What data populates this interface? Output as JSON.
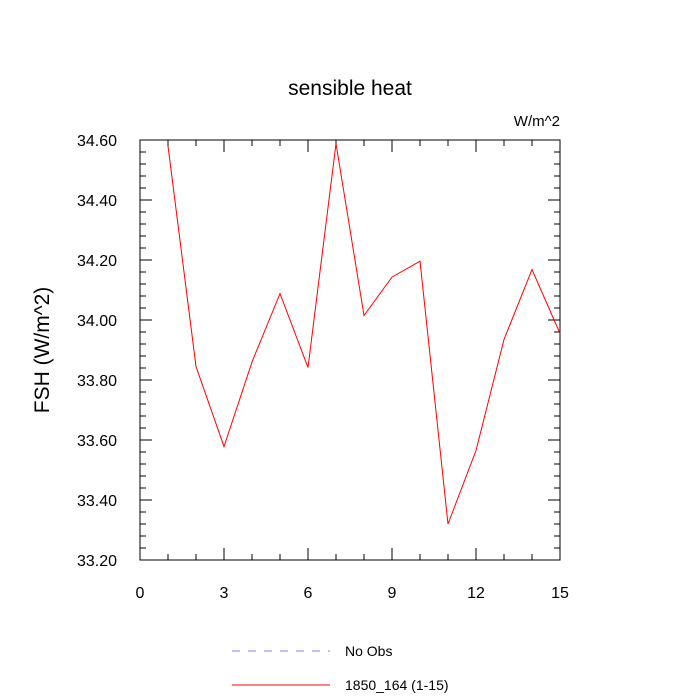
{
  "chart_data": {
    "type": "line",
    "title": "sensible heat",
    "units_label": "W/m^2",
    "ylabel": "FSH  (W/m^2)",
    "xlabel": "",
    "xlim": [
      0,
      15
    ],
    "ylim": [
      33.2,
      34.6
    ],
    "x_ticks": [
      0,
      3,
      6,
      9,
      12,
      15
    ],
    "x_tick_labels": [
      "0",
      "3",
      "6",
      "9",
      "12",
      "15"
    ],
    "y_ticks": [
      33.2,
      33.4,
      33.6,
      33.8,
      34.0,
      34.2,
      34.4,
      34.6
    ],
    "y_tick_labels": [
      "33.20",
      "33.40",
      "33.60",
      "33.80",
      "34.00",
      "34.20",
      "34.40",
      "34.60"
    ],
    "grid": false,
    "legend_position": "bottom",
    "series": [
      {
        "name": "1850_164 (1-15)",
        "color": "#ff0000",
        "style": "solid",
        "x": [
          1,
          2,
          3,
          4,
          5,
          6,
          7,
          8,
          9,
          10,
          11,
          12,
          13,
          14,
          15
        ],
        "y": [
          34.58,
          33.845,
          33.578,
          33.86,
          34.088,
          33.842,
          34.588,
          34.015,
          34.143,
          34.196,
          33.32,
          33.565,
          33.935,
          34.168,
          33.955
        ]
      }
    ],
    "legend": [
      {
        "name": "No Obs",
        "color": "#8080ff",
        "style": "dashed"
      },
      {
        "name": "1850_164 (1-15)",
        "color": "#ff0000",
        "style": "solid"
      }
    ]
  }
}
